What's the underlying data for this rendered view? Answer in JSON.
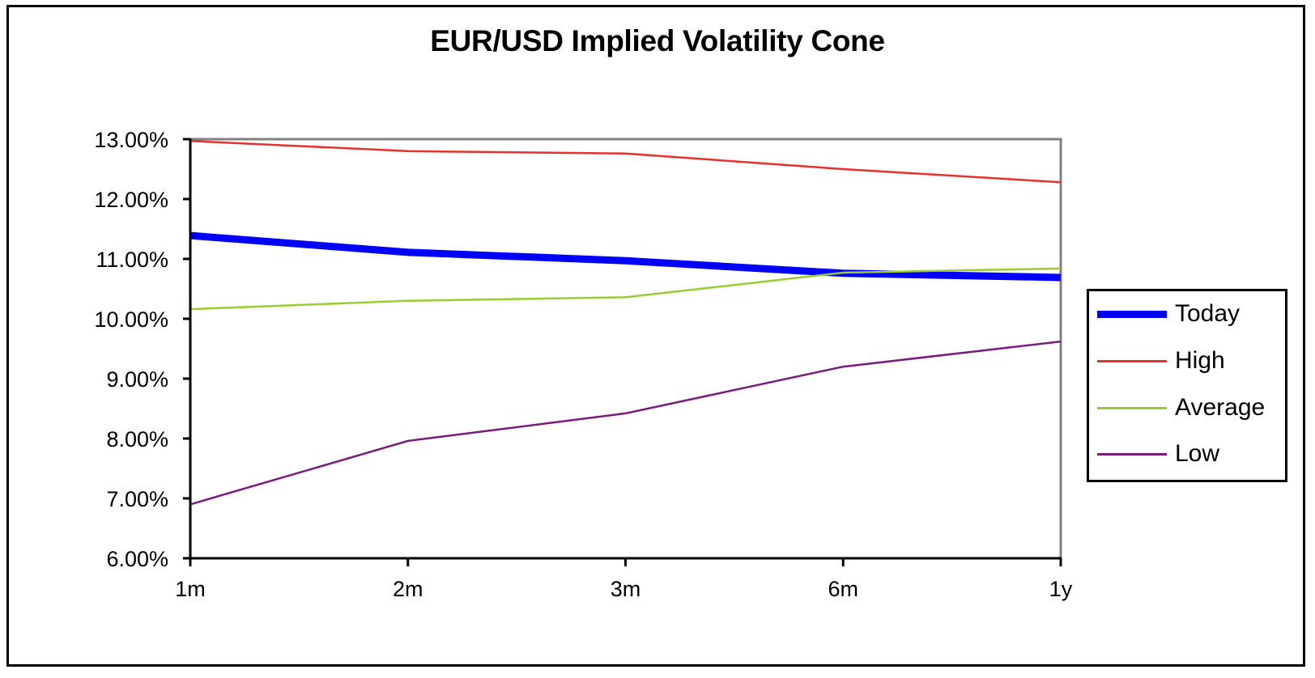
{
  "chart_data": {
    "type": "line",
    "title": "EUR/USD Implied Volatility Cone",
    "xlabel": "",
    "ylabel": "",
    "categories": [
      "1m",
      "2m",
      "3m",
      "6m",
      "1y"
    ],
    "ylim": [
      6.0,
      13.0
    ],
    "yticks": [
      "6.00%",
      "7.00%",
      "8.00%",
      "9.00%",
      "10.00%",
      "11.00%",
      "12.00%",
      "13.00%"
    ],
    "grid": false,
    "legend_position": "right",
    "series": [
      {
        "name": "Today",
        "color": "#0000ff",
        "width": 9,
        "values": [
          11.39,
          11.11,
          10.97,
          10.76,
          10.69
        ]
      },
      {
        "name": "High",
        "color": "#e8312b",
        "width": 2.5,
        "values": [
          12.97,
          12.8,
          12.76,
          12.5,
          12.28
        ]
      },
      {
        "name": "Average",
        "color": "#9acd32",
        "width": 2.5,
        "values": [
          10.16,
          10.3,
          10.36,
          10.77,
          10.84
        ]
      },
      {
        "name": "Low",
        "color": "#7b1a7f",
        "width": 2.5,
        "values": [
          6.9,
          7.96,
          8.42,
          9.2,
          9.62
        ]
      }
    ]
  }
}
